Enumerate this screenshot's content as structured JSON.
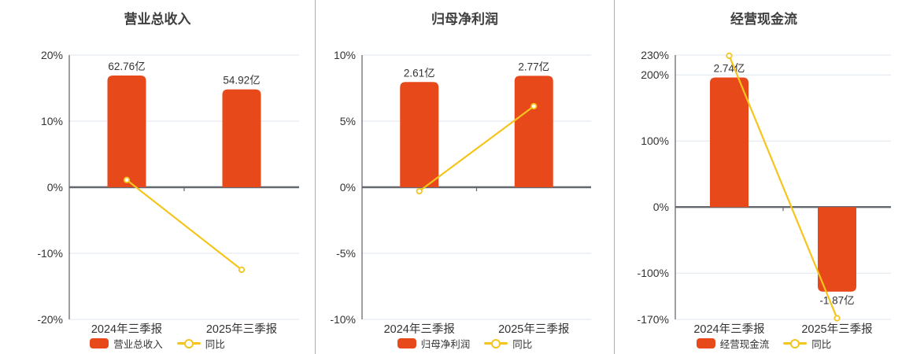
{
  "colors": {
    "bar": "#e8491b",
    "line": "#f5c51d",
    "grid_line": "#dfe5ee",
    "zero_axis": "#63686e",
    "y_axis": "#5a5f66",
    "tick_text": "#333333",
    "value_label_text": "#333333",
    "title_text": "#3f3f3f",
    "panel_divider": "#adadaa",
    "marker_fill": "#ffffff",
    "background": "#ffffff"
  },
  "chart_data": [
    {
      "type": "bar",
      "title": "营业总收入",
      "categories": [
        "2024年三季报",
        "2025年三季报"
      ],
      "bar_series": {
        "name": "营业总收入",
        "value_labels": [
          "62.76亿",
          "54.92亿"
        ],
        "display_values_pct": [
          16.9,
          14.8
        ]
      },
      "line_series": {
        "name": "同比",
        "values_pct": [
          1.1,
          -12.49
        ]
      },
      "ylim": [
        -20,
        20
      ],
      "yticks": [
        20,
        10,
        0,
        -10,
        -20
      ],
      "ytick_labels": [
        "20%",
        "10%",
        "0%",
        "-10%",
        "-20%"
      ],
      "grid": true,
      "legend_position": "bottom"
    },
    {
      "type": "bar",
      "title": "归母净利润",
      "categories": [
        "2024年三季报",
        "2025年三季报"
      ],
      "bar_series": {
        "name": "归母净利润",
        "value_labels": [
          "2.61亿",
          "2.77亿"
        ],
        "display_values_pct": [
          7.96,
          8.43
        ]
      },
      "line_series": {
        "name": "同比",
        "values_pct": [
          -0.3,
          6.13
        ]
      },
      "ylim": [
        -10,
        10
      ],
      "yticks": [
        10,
        5,
        0,
        -5,
        -10
      ],
      "ytick_labels": [
        "10%",
        "5%",
        "0%",
        "-5%",
        "-10%"
      ],
      "grid": true,
      "legend_position": "bottom"
    },
    {
      "type": "bar",
      "title": "经营现金流",
      "categories": [
        "2024年三季报",
        "2025年三季报"
      ],
      "bar_series": {
        "name": "经营现金流",
        "value_labels": [
          "2.74亿",
          "-1.87亿"
        ],
        "display_values_pct": [
          196,
          -128
        ]
      },
      "line_series": {
        "name": "同比",
        "values_pct": [
          229,
          -168.25
        ]
      },
      "ylim": [
        -170,
        230
      ],
      "yticks": [
        230,
        200,
        100,
        0,
        -100,
        -170
      ],
      "ytick_labels": [
        "230%",
        "200%",
        "100%",
        "0%",
        "-100%",
        "-170%"
      ],
      "grid": true,
      "legend_position": "bottom"
    }
  ]
}
